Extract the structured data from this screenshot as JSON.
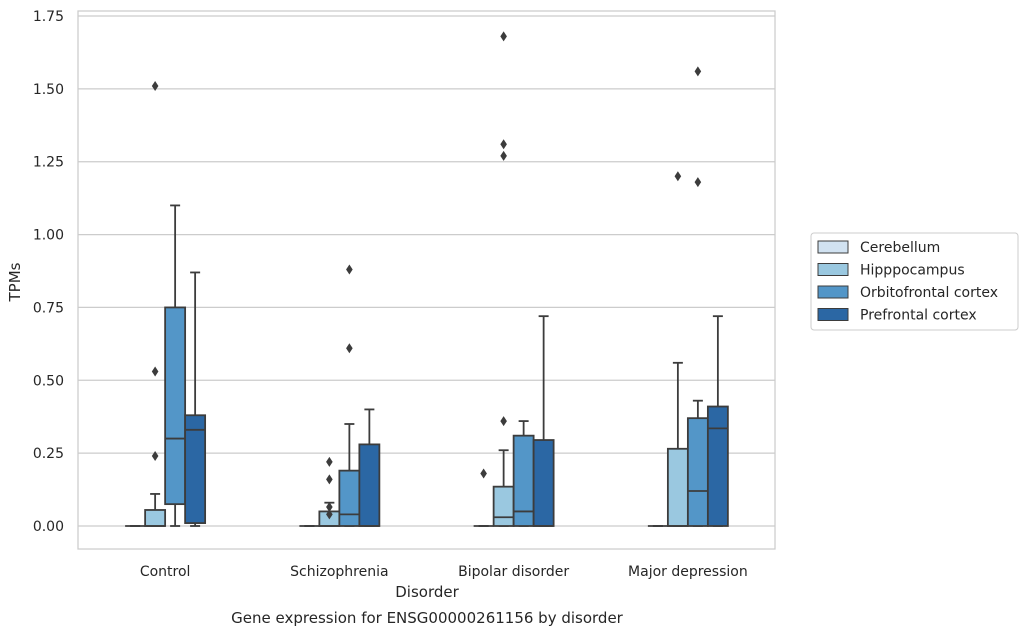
{
  "chart_data": {
    "type": "box",
    "title": "Gene expression for ENSG00000261156 by disorder",
    "xlabel": "Disorder",
    "ylabel": "TPMs",
    "ylim": [
      -0.08,
      1.77
    ],
    "yticks": [
      "0.00",
      "0.25",
      "0.50",
      "0.75",
      "1.00",
      "1.25",
      "1.50",
      "1.75"
    ],
    "ytick_values": [
      0,
      0.25,
      0.5,
      0.75,
      1.0,
      1.25,
      1.5,
      1.75
    ],
    "grid": "horizontal",
    "legend_position": "right",
    "categories": [
      "Control",
      "Schizophrenia",
      "Bipolar disorder",
      "Major depression"
    ],
    "series": [
      {
        "name": "Cerebellum",
        "color": "#d1e2f1",
        "boxes": [
          {
            "q1": 0,
            "median": 0,
            "q3": 0,
            "whisker_low": 0,
            "whisker_high": 0,
            "outliers": []
          },
          {
            "q1": 0,
            "median": 0,
            "q3": 0,
            "whisker_low": 0,
            "whisker_high": 0,
            "outliers": []
          },
          {
            "q1": 0,
            "median": 0,
            "q3": 0,
            "whisker_low": 0,
            "whisker_high": 0,
            "outliers": [
              0.18
            ]
          },
          {
            "q1": 0,
            "median": 0,
            "q3": 0,
            "whisker_low": 0,
            "whisker_high": 0,
            "outliers": []
          }
        ]
      },
      {
        "name": "Hipppocampus",
        "color": "#9ac8e0",
        "boxes": [
          {
            "q1": 0,
            "median": 0,
            "q3": 0.055,
            "whisker_low": 0,
            "whisker_high": 0.11,
            "outliers": [
              0.24,
              0.53,
              1.51
            ]
          },
          {
            "q1": 0,
            "median": 0,
            "q3": 0.05,
            "whisker_low": 0,
            "whisker_high": 0.08,
            "outliers": [
              0.04,
              0.065,
              0.16,
              0.22
            ]
          },
          {
            "q1": 0,
            "median": 0.03,
            "q3": 0.135,
            "whisker_low": 0,
            "whisker_high": 0.26,
            "outliers": [
              0.36,
              1.27,
              1.31,
              1.68
            ]
          },
          {
            "q1": 0,
            "median": 0,
            "q3": 0.265,
            "whisker_low": 0,
            "whisker_high": 0.56,
            "outliers": [
              1.2
            ]
          }
        ]
      },
      {
        "name": "Orbitofrontal cortex",
        "color": "#5396c8",
        "boxes": [
          {
            "q1": 0.075,
            "median": 0.3,
            "q3": 0.75,
            "whisker_low": 0,
            "whisker_high": 1.1,
            "outliers": []
          },
          {
            "q1": 0,
            "median": 0.04,
            "q3": 0.19,
            "whisker_low": 0,
            "whisker_high": 0.35,
            "outliers": [
              0.61,
              0.88
            ]
          },
          {
            "q1": 0,
            "median": 0.05,
            "q3": 0.31,
            "whisker_low": 0,
            "whisker_high": 0.36,
            "outliers": []
          },
          {
            "q1": 0,
            "median": 0.12,
            "q3": 0.37,
            "whisker_low": 0,
            "whisker_high": 0.43,
            "outliers": [
              1.18,
              1.56
            ]
          }
        ]
      },
      {
        "name": "Prefrontal cortex",
        "color": "#2b67a4",
        "boxes": [
          {
            "q1": 0.01,
            "median": 0.33,
            "q3": 0.38,
            "whisker_low": 0,
            "whisker_high": 0.87,
            "outliers": []
          },
          {
            "q1": 0,
            "median": 0,
            "q3": 0.28,
            "whisker_low": 0,
            "whisker_high": 0.4,
            "outliers": []
          },
          {
            "q1": 0,
            "median": 0,
            "q3": 0.295,
            "whisker_low": 0,
            "whisker_high": 0.72,
            "outliers": []
          },
          {
            "q1": 0,
            "median": 0.335,
            "q3": 0.41,
            "whisker_low": 0,
            "whisker_high": 0.72,
            "outliers": []
          }
        ]
      }
    ]
  }
}
